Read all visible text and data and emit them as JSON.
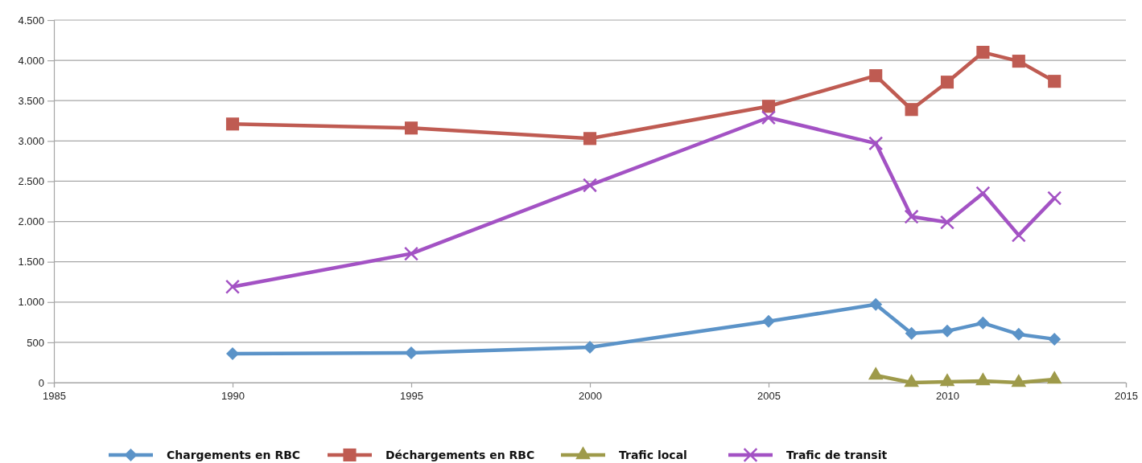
{
  "chart_data": {
    "type": "line",
    "xlim": [
      1985,
      2015
    ],
    "xticks": [
      1985,
      1990,
      1995,
      2000,
      2005,
      2010,
      2015
    ],
    "ylim": [
      0,
      4500
    ],
    "yticks": [
      0,
      500,
      {
        "value": 1000,
        "label": "1.000"
      },
      {
        "value": 1500,
        "label": "1.500"
      },
      {
        "value": 2000,
        "label": "2.000"
      },
      {
        "value": 2500,
        "label": "2.500"
      },
      {
        "value": 3000,
        "label": "3.000"
      },
      {
        "value": 3500,
        "label": "3.500"
      },
      {
        "value": 4000,
        "label": "4.000"
      },
      {
        "value": 4500,
        "label": "4.500"
      }
    ],
    "grid": "y",
    "legend": "bottom",
    "line_style": "solid",
    "series": [
      {
        "name": "Chargements en RBC",
        "color": "#5b93c8",
        "marker": "diamond",
        "x": [
          1990,
          1995,
          2000,
          2005,
          2008,
          2009,
          2010,
          2011,
          2012,
          2013
        ],
        "values": [
          360,
          370,
          440,
          760,
          970,
          610,
          640,
          740,
          600,
          540
        ]
      },
      {
        "name": "Déchargements en RBC",
        "color": "#bf5b52",
        "marker": "square",
        "x": [
          1990,
          1995,
          2000,
          2005,
          2008,
          2009,
          2010,
          2011,
          2012,
          2013
        ],
        "values": [
          3210,
          3160,
          3030,
          3430,
          3810,
          3390,
          3730,
          4100,
          3990,
          3740
        ]
      },
      {
        "name": "Trafic local",
        "color": "#9e9a4a",
        "marker": "triangle",
        "x": [
          2008,
          2009,
          2010,
          2011,
          2012,
          2013
        ],
        "values": [
          90,
          0,
          10,
          20,
          0,
          40
        ]
      },
      {
        "name": "Trafic de transit",
        "color": "#a352c4",
        "marker": "cross",
        "x": [
          1990,
          1995,
          2000,
          2005,
          2008,
          2009,
          2010,
          2011,
          2012,
          2013
        ],
        "values": [
          1190,
          1600,
          2450,
          3290,
          2970,
          2060,
          1990,
          2350,
          1830,
          2290
        ]
      }
    ]
  }
}
